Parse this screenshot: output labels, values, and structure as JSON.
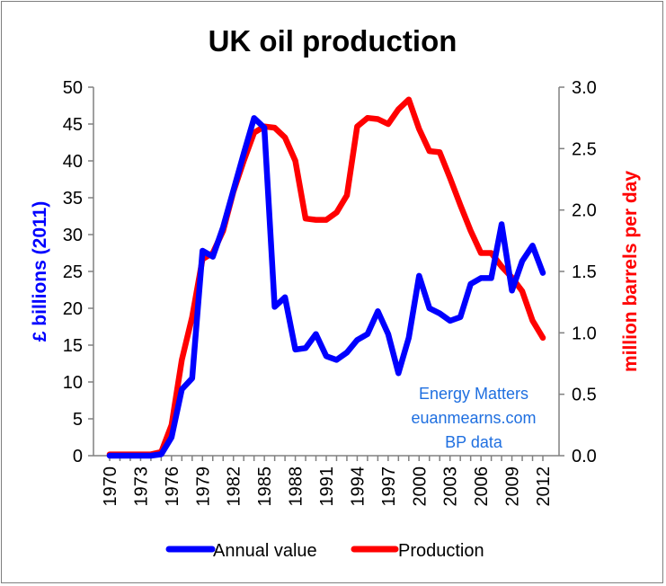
{
  "chart_data": {
    "type": "line",
    "title": "UK oil production",
    "ylabel_left": "£ billions (2011)",
    "ylabel_right": "million barrels per day",
    "ylim_left": [
      0,
      50
    ],
    "ylim_right": [
      0,
      3.0
    ],
    "yticks_left": [
      "0",
      "5",
      "10",
      "15",
      "20",
      "25",
      "30",
      "35",
      "40",
      "45",
      "50"
    ],
    "yticks_right": [
      "0.0",
      "0.5",
      "1.0",
      "1.5",
      "2.0",
      "2.5",
      "3.0"
    ],
    "xticks": [
      "1970",
      "1973",
      "1976",
      "1979",
      "1982",
      "1985",
      "1988",
      "1991",
      "1994",
      "1997",
      "2000",
      "2003",
      "2006",
      "2009",
      "2012"
    ],
    "x": [
      1970,
      1971,
      1972,
      1973,
      1974,
      1975,
      1976,
      1977,
      1978,
      1979,
      1980,
      1981,
      1982,
      1983,
      1984,
      1985,
      1986,
      1987,
      1988,
      1989,
      1990,
      1991,
      1992,
      1993,
      1994,
      1995,
      1996,
      1997,
      1998,
      1999,
      2000,
      2001,
      2002,
      2003,
      2004,
      2005,
      2006,
      2007,
      2008,
      2009,
      2010,
      2011,
      2012
    ],
    "grid": false,
    "legend_position": "bottom",
    "series": [
      {
        "name": "Annual value",
        "axis": "left",
        "color": "#0000ff",
        "values": [
          0,
          0,
          0,
          0,
          0,
          0.2,
          2.5,
          9,
          10.5,
          27.8,
          27,
          31,
          36,
          41,
          45.8,
          44.5,
          20.2,
          21.5,
          14.4,
          14.6,
          16.5,
          13.5,
          13,
          14,
          15.7,
          16.5,
          19.6,
          16.5,
          11.2,
          16,
          24.4,
          20,
          19.3,
          18.3,
          18.8,
          23.3,
          24.1,
          24.1,
          31.4,
          22.4,
          26.4,
          28.5,
          24.8
        ]
      },
      {
        "name": "Production",
        "axis": "right",
        "color": "#ff0000",
        "values": [
          0.01,
          0.01,
          0.01,
          0.01,
          0.01,
          0.03,
          0.25,
          0.78,
          1.13,
          1.6,
          1.65,
          1.83,
          2.15,
          2.4,
          2.63,
          2.68,
          2.67,
          2.59,
          2.4,
          1.93,
          1.92,
          1.92,
          1.98,
          2.12,
          2.68,
          2.75,
          2.74,
          2.7,
          2.82,
          2.9,
          2.66,
          2.48,
          2.47,
          2.26,
          2.04,
          1.83,
          1.65,
          1.65,
          1.54,
          1.45,
          1.34,
          1.1,
          0.96
        ]
      }
    ],
    "annotations": [
      "Energy Matters",
      "euanmearns.com",
      "BP data"
    ],
    "annotation_color": "#1f6fe0"
  }
}
